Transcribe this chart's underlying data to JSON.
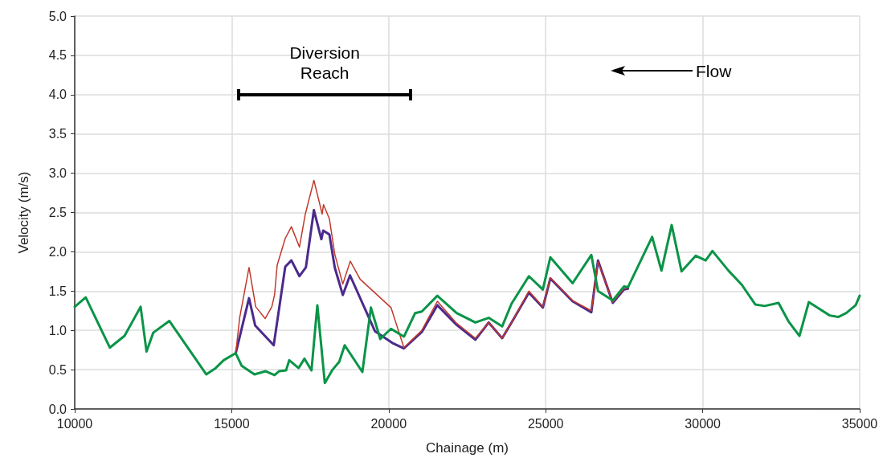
{
  "chart_data": {
    "type": "line",
    "xlabel": "Chainage (m)",
    "ylabel": "Velocity (m/s)",
    "xlim": [
      10000,
      35000
    ],
    "xticks": [
      10000,
      15000,
      20000,
      25000,
      30000,
      35000
    ],
    "ylim": [
      0,
      5
    ],
    "yticks": [
      {
        "value": 0,
        "label": "0.0"
      },
      {
        "value": 0.5,
        "label": "0.5"
      },
      {
        "value": 1,
        "label": "1.0"
      },
      {
        "value": 1.5,
        "label": "1.5"
      },
      {
        "value": 2,
        "label": "2.0"
      },
      {
        "value": 2.5,
        "label": "2.5"
      },
      {
        "value": 3,
        "label": "3.0"
      },
      {
        "value": 3.5,
        "label": "3.5"
      },
      {
        "value": 4,
        "label": "4.0"
      },
      {
        "value": 4.5,
        "label": "4.5"
      },
      {
        "value": 5,
        "label": "5.0"
      }
    ],
    "grid": true,
    "marker": "none",
    "line_style": "solid",
    "annotations": [
      "Diversion Reach",
      "Flow"
    ],
    "series": [
      {
        "color": "#4b2a8c",
        "x": [
          15128,
          15552,
          15749,
          16338,
          16705,
          16901,
          17157,
          17362,
          17618,
          17856,
          17914,
          18111,
          18282,
          18538,
          18768,
          19561,
          20114,
          20484,
          21055,
          21549,
          22163,
          22760,
          23185,
          23613,
          23912,
          24465,
          24909,
          25148,
          25857,
          26453,
          26666,
          27137,
          27495,
          27622
        ],
        "values": [
          0.71,
          1.41,
          1.06,
          0.81,
          1.81,
          1.89,
          1.69,
          1.8,
          2.53,
          2.16,
          2.27,
          2.22,
          1.8,
          1.45,
          1.7,
          0.99,
          0.84,
          0.77,
          0.98,
          1.32,
          1.07,
          0.88,
          1.1,
          0.9,
          1.1,
          1.48,
          1.29,
          1.66,
          1.37,
          1.23,
          1.89,
          1.35,
          1.52,
          1.53
        ]
      },
      {
        "color": "#c0392b",
        "x": [
          15128,
          15257,
          15552,
          15765,
          16064,
          16277,
          16364,
          16448,
          16705,
          16901,
          17157,
          17344,
          17618,
          17881,
          17923,
          18111,
          18282,
          18538,
          18776,
          19091,
          20073,
          20484,
          21055,
          21549,
          22163,
          22760,
          23185,
          23613,
          23912,
          24465,
          24909,
          25148,
          25857,
          26453,
          26666,
          27137,
          27495,
          27622
        ],
        "values": [
          0.71,
          1.17,
          1.8,
          1.3,
          1.15,
          1.3,
          1.45,
          1.83,
          2.17,
          2.32,
          2.06,
          2.48,
          2.91,
          2.48,
          2.6,
          2.42,
          1.97,
          1.59,
          1.88,
          1.65,
          1.29,
          0.78,
          1.0,
          1.37,
          1.09,
          0.9,
          1.1,
          0.9,
          1.1,
          1.5,
          1.3,
          1.67,
          1.38,
          1.25,
          1.87,
          1.36,
          1.53,
          1.54
        ]
      },
      {
        "color": "#0a9447",
        "x": [
          10000,
          10350,
          11118,
          11587,
          12099,
          12287,
          12500,
          13012,
          14189,
          14488,
          14744,
          15128,
          15315,
          15724,
          16082,
          16364,
          16507,
          16730,
          16832,
          17131,
          17318,
          17540,
          17727,
          17965,
          18213,
          18426,
          18598,
          19161,
          19434,
          19731,
          20073,
          20484,
          20842,
          21055,
          21549,
          22163,
          22760,
          23185,
          23613,
          23912,
          24465,
          24909,
          25148,
          25857,
          26453,
          26666,
          27137,
          27495,
          27622,
          28390,
          28687,
          29012,
          29327,
          29780,
          30095,
          30310,
          30822,
          31246,
          31673,
          31972,
          32415,
          32740,
          33081,
          33380,
          34046,
          34317,
          34573,
          34872,
          35000
        ],
        "values": [
          1.3,
          1.42,
          0.78,
          0.93,
          1.3,
          0.73,
          0.97,
          1.12,
          0.44,
          0.52,
          0.62,
          0.71,
          0.55,
          0.44,
          0.48,
          0.43,
          0.48,
          0.49,
          0.62,
          0.52,
          0.64,
          0.49,
          1.32,
          0.33,
          0.5,
          0.6,
          0.81,
          0.47,
          1.29,
          0.89,
          1.02,
          0.92,
          1.22,
          1.24,
          1.44,
          1.22,
          1.1,
          1.16,
          1.05,
          1.34,
          1.69,
          1.52,
          1.93,
          1.6,
          1.96,
          1.5,
          1.38,
          1.56,
          1.55,
          2.19,
          1.76,
          2.34,
          1.75,
          1.95,
          1.89,
          2.01,
          1.76,
          1.58,
          1.33,
          1.31,
          1.35,
          1.11,
          0.93,
          1.36,
          1.19,
          1.17,
          1.22,
          1.32,
          1.44
        ]
      }
    ]
  }
}
